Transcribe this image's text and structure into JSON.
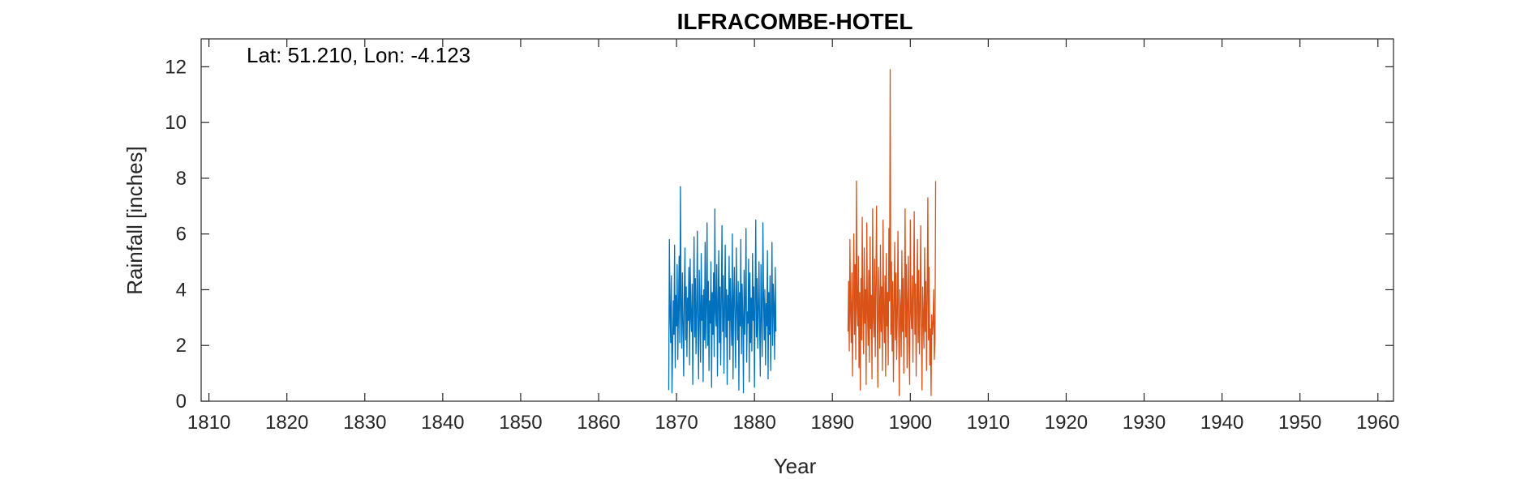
{
  "chart_data": {
    "type": "line",
    "title": "ILFRACOMBE-HOTEL",
    "xlabel": "Year",
    "ylabel": "Rainfall [inches]",
    "annotation": "Lat: 51.210, Lon: -4.123",
    "xlim": [
      1809,
      1962
    ],
    "ylim": [
      0,
      13
    ],
    "xticks": [
      1810,
      1820,
      1830,
      1840,
      1850,
      1860,
      1870,
      1880,
      1890,
      1900,
      1910,
      1920,
      1930,
      1940,
      1950,
      1960
    ],
    "yticks": [
      0,
      2,
      4,
      6,
      8,
      10,
      12
    ],
    "grid": false,
    "series": [
      {
        "color": "#0072BD",
        "x_start": 1869.0,
        "step": 0.0833333,
        "values": [
          0.4,
          5.8,
          3.2,
          2.1,
          4.5,
          0.3,
          1.8,
          3.6,
          2.4,
          5.6,
          1.2,
          3.8,
          2.7,
          4.9,
          1.5,
          3.3,
          5.2,
          2.1,
          7.7,
          3.4,
          1.9,
          4.6,
          2.8,
          0.9,
          3.9,
          5.5,
          2.2,
          4.1,
          1.6,
          3.7,
          2.9,
          4.8,
          1.3,
          5.1,
          3.0,
          2.5,
          4.2,
          0.6,
          3.5,
          5.9,
          2.3,
          4.4,
          1.7,
          3.1,
          6.1,
          2.6,
          0.8,
          4.7,
          3.3,
          1.4,
          5.3,
          2.9,
          3.8,
          0.7,
          4.0,
          2.2,
          5.7,
          1.9,
          3.4,
          6.4,
          2.0,
          4.3,
          1.1,
          3.6,
          2.8,
          5.0,
          0.5,
          3.9,
          2.4,
          4.6,
          1.6,
          6.9,
          3.2,
          2.7,
          4.9,
          0.9,
          3.5,
          5.4,
          2.1,
          4.1,
          1.3,
          3.7,
          6.3,
          2.5,
          4.5,
          1.0,
          3.3,
          5.6,
          2.3,
          4.0,
          0.6,
          3.8,
          2.9,
          5.2,
          1.5,
          4.4,
          3.1,
          2.0,
          6.0,
          0.8,
          3.6,
          4.8,
          2.6,
          1.2,
          5.5,
          3.4,
          2.2,
          4.3,
          0.4,
          3.9,
          2.7,
          5.8,
          1.7,
          4.2,
          3.0,
          0.3,
          4.7,
          2.4,
          3.5,
          6.2,
          1.4,
          3.2,
          2.8,
          5.1,
          0.7,
          4.6,
          2.1,
          3.7,
          1.8,
          5.3,
          2.9,
          4.1,
          0.5,
          3.6,
          6.5,
          2.3,
          4.4,
          1.9,
          3.3,
          5.0,
          2.6,
          0.9,
          4.9,
          3.1,
          1.6,
          6.4,
          3.8,
          2.2,
          4.0,
          1.3,
          3.5,
          2.7,
          5.4,
          0.8,
          3.9,
          2.4,
          4.5,
          1.1,
          3.2,
          5.7,
          2.0,
          4.2,
          3.4,
          1.5,
          4.8,
          2.5
        ]
      },
      {
        "color": "#D95319",
        "x_start": 1892.0,
        "step": 0.0833333,
        "values": [
          2.5,
          4.3,
          1.8,
          5.8,
          3.2,
          2.1,
          4.6,
          0.9,
          3.7,
          6.0,
          2.4,
          4.9,
          1.5,
          7.9,
          3.4,
          2.7,
          5.2,
          1.2,
          3.9,
          0.4,
          4.4,
          2.2,
          6.6,
          3.1,
          1.7,
          5.5,
          2.8,
          4.0,
          0.6,
          6.4,
          3.3,
          2.0,
          4.7,
          1.4,
          5.9,
          2.6,
          3.8,
          0.8,
          6.9,
          3.0,
          2.3,
          5.1,
          1.6,
          4.2,
          7.0,
          2.9,
          0.5,
          4.8,
          3.5,
          1.9,
          5.6,
          2.5,
          4.1,
          1.1,
          6.5,
          3.2,
          2.1,
          4.5,
          0.9,
          5.3,
          2.7,
          3.9,
          1.3,
          6.2,
          3.6,
          11.9,
          2.4,
          5.0,
          1.8,
          4.3,
          0.7,
          3.4,
          5.7,
          2.2,
          4.6,
          1.5,
          3.1,
          6.1,
          2.8,
          0.2,
          4.0,
          3.3,
          1.6,
          5.4,
          2.5,
          4.4,
          1.0,
          3.7,
          6.9,
          2.3,
          4.9,
          1.2,
          3.5,
          5.2,
          2.0,
          0.6,
          6.5,
          3.2,
          2.6,
          4.5,
          1.4,
          3.9,
          6.8,
          2.4,
          4.2,
          0.9,
          3.6,
          5.8,
          2.1,
          4.7,
          1.7,
          3.3,
          6.3,
          2.7,
          0.4,
          4.1,
          3.0,
          1.9,
          5.5,
          2.5,
          4.3,
          1.1,
          3.8,
          7.3,
          2.2,
          4.8,
          1.3,
          2.6,
          0.2,
          3.1,
          2.4,
          2.8,
          4.0,
          1.5,
          2.2,
          7.9
        ]
      }
    ]
  }
}
